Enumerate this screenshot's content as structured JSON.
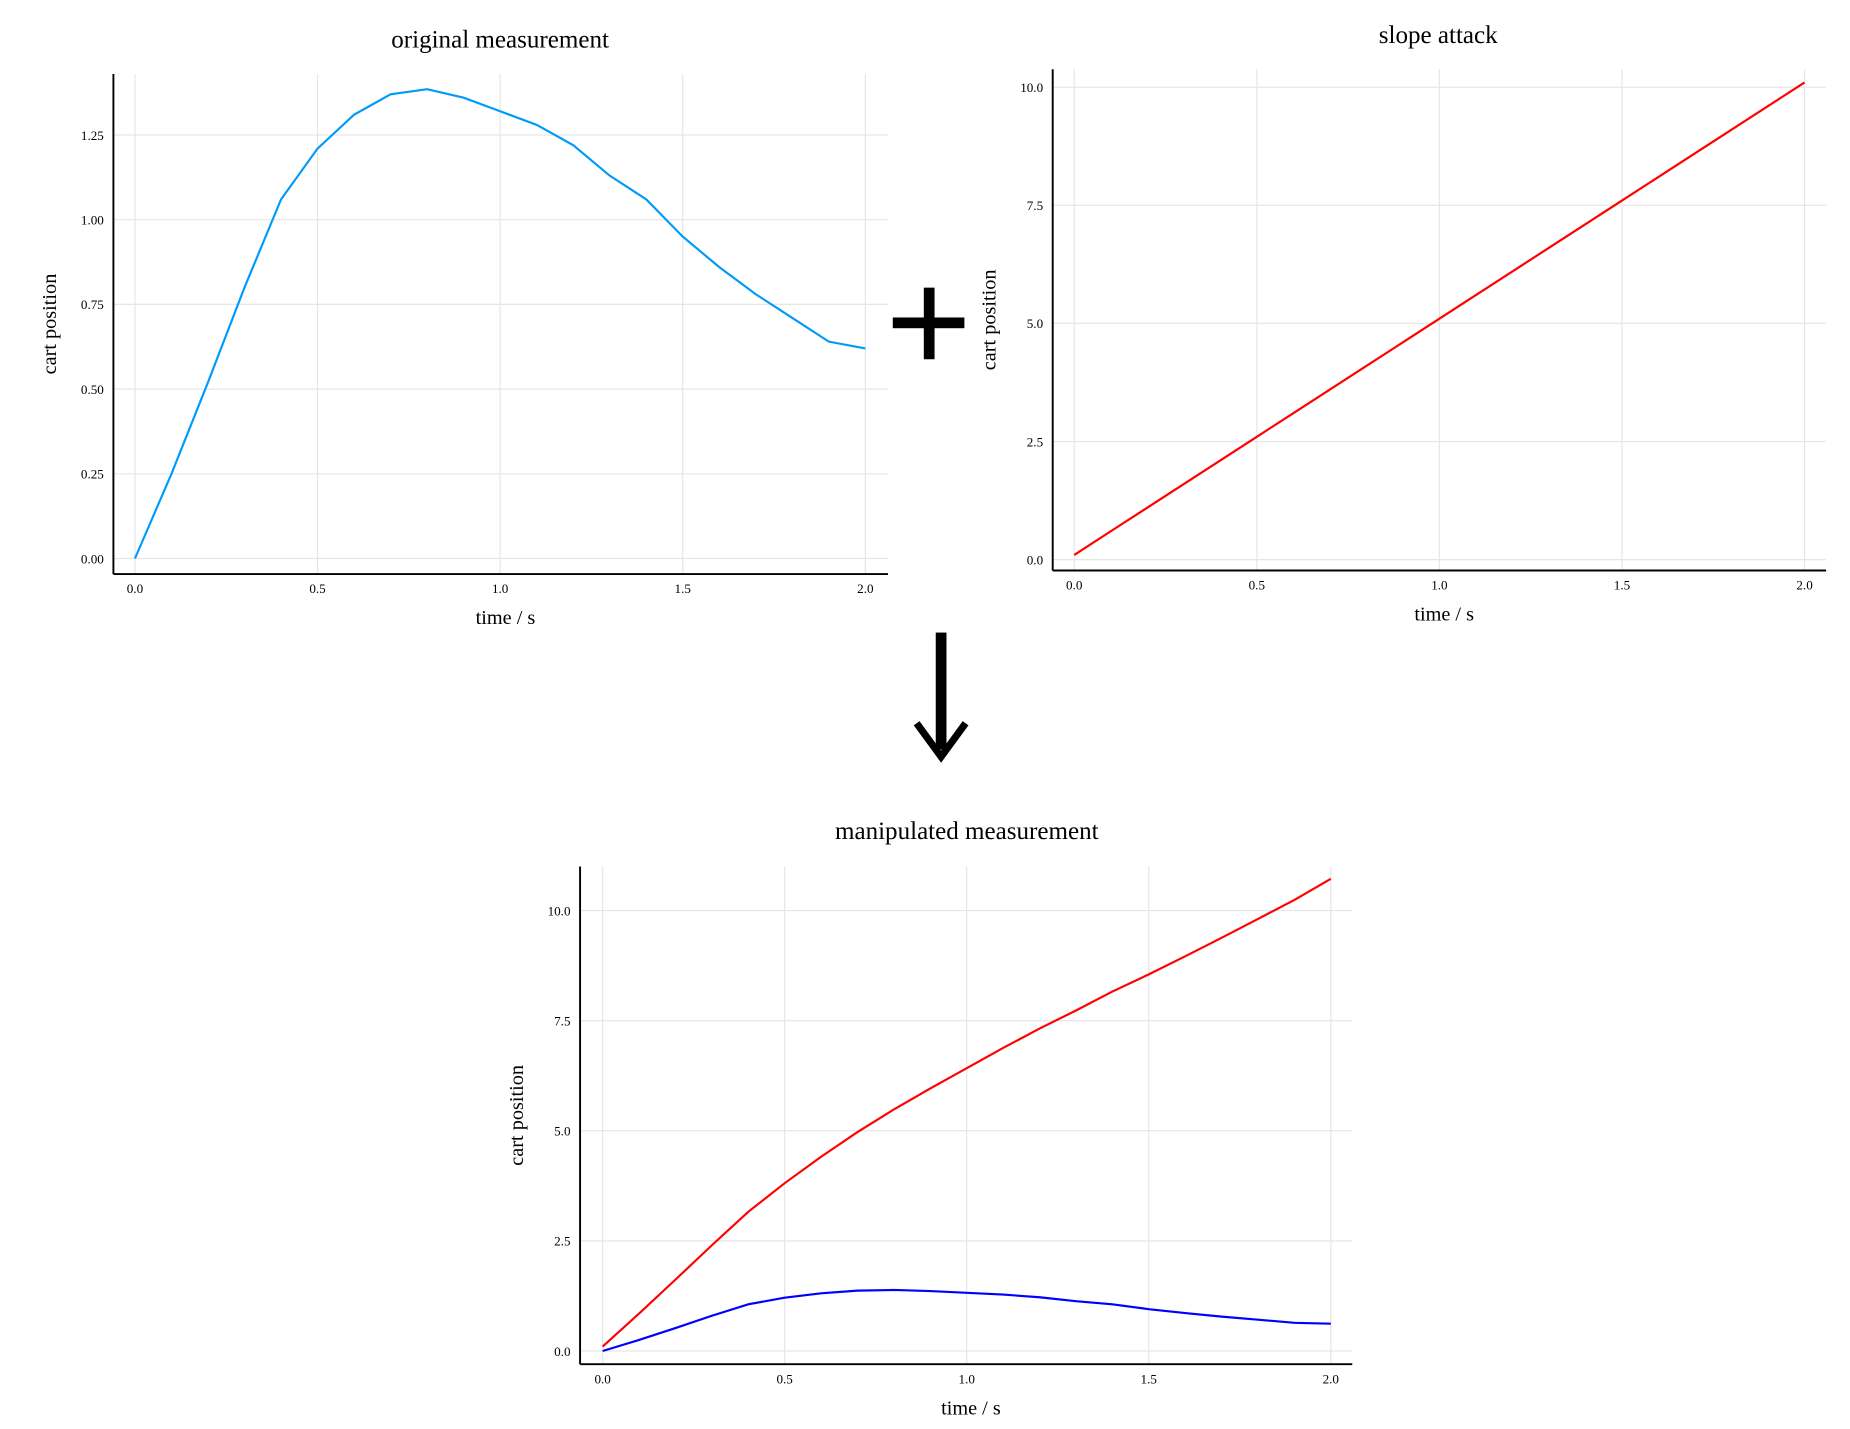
{
  "chart_data": [
    {
      "type": "line",
      "title": "original measurement",
      "xlabel": "time / s",
      "ylabel": "cart position",
      "x": [
        0,
        0.1,
        0.2,
        0.3,
        0.4,
        0.5,
        0.6,
        0.7,
        0.8,
        0.9,
        1.0,
        1.1,
        1.2,
        1.3,
        1.4,
        1.5,
        1.6,
        1.7,
        1.8,
        1.9,
        2.0
      ],
      "series": [
        {
          "color": "#009af9",
          "values": [
            0,
            0.25,
            0.52,
            0.8,
            1.06,
            1.21,
            1.31,
            1.37,
            1.385,
            1.36,
            1.32,
            1.28,
            1.22,
            1.13,
            1.06,
            0.95,
            0.86,
            0.78,
            0.71,
            0.64,
            0.62
          ]
        }
      ],
      "xlim": [
        -0.059,
        2.062
      ],
      "ylim": [
        -0.046,
        1.43
      ],
      "xticks": [
        {
          "value": 0,
          "label": "0.0"
        },
        0.5,
        {
          "value": 1,
          "label": "1.0"
        },
        1.5,
        {
          "value": 2,
          "label": "2.0"
        }
      ],
      "yticks": [
        {
          "value": 0,
          "label": "0.00"
        },
        0.25,
        {
          "value": 0.5,
          "label": "0.50"
        },
        0.75,
        {
          "value": 1,
          "label": "1.00"
        },
        1.25
      ],
      "grid": true
    },
    {
      "type": "line",
      "title": "slope attack",
      "xlabel": "time / s",
      "ylabel": "cart position",
      "x": [
        0,
        0.1,
        0.2,
        0.3,
        0.4,
        0.5,
        0.6,
        0.7,
        0.8,
        0.9,
        1.0,
        1.1,
        1.2,
        1.3,
        1.4,
        1.5,
        1.6,
        1.7,
        1.8,
        1.9,
        2.0
      ],
      "series": [
        {
          "color": "#ff0000",
          "values": [
            0.1,
            0.6,
            1.1,
            1.6,
            2.1,
            2.6,
            3.1,
            3.6,
            4.1,
            4.6,
            5.1,
            5.6,
            6.1,
            6.6,
            7.1,
            7.6,
            8.1,
            8.6,
            9.1,
            9.6,
            10.1
          ]
        }
      ],
      "xlim": [
        -0.059,
        2.059
      ],
      "ylim": [
        -0.23,
        10.38
      ],
      "xticks": [
        {
          "value": 0,
          "label": "0.0"
        },
        0.5,
        {
          "value": 1,
          "label": "1.0"
        },
        1.5,
        {
          "value": 2,
          "label": "2.0"
        }
      ],
      "yticks": [
        {
          "value": 0,
          "label": "0.0"
        },
        2.5,
        {
          "value": 5,
          "label": "5.0"
        },
        7.5,
        {
          "value": 10,
          "label": "10.0"
        }
      ],
      "grid": true
    },
    {
      "type": "line",
      "title": "manipulated measurement",
      "xlabel": "time / s",
      "ylabel": "cart position",
      "x": [
        0,
        0.1,
        0.2,
        0.3,
        0.4,
        0.5,
        0.6,
        0.7,
        0.8,
        0.9,
        1.0,
        1.1,
        1.2,
        1.3,
        1.4,
        1.5,
        1.6,
        1.7,
        1.8,
        1.9,
        2.0
      ],
      "series": [
        {
          "color": "#ff0000",
          "values": [
            0.1,
            0.85,
            1.62,
            2.4,
            3.16,
            3.81,
            4.41,
            4.97,
            5.485,
            5.96,
            6.42,
            6.88,
            7.32,
            7.73,
            8.16,
            8.55,
            8.96,
            9.38,
            9.81,
            10.24,
            10.72
          ]
        },
        {
          "color": "#0000ff",
          "values": [
            0,
            0.25,
            0.52,
            0.8,
            1.06,
            1.21,
            1.31,
            1.37,
            1.385,
            1.36,
            1.32,
            1.28,
            1.22,
            1.13,
            1.06,
            0.95,
            0.86,
            0.78,
            0.71,
            0.64,
            0.62
          ]
        }
      ],
      "xlim": [
        -0.062,
        2.059
      ],
      "ylim": [
        -0.3,
        11.0
      ],
      "xticks": [
        {
          "value": 0,
          "label": "0.0"
        },
        0.5,
        {
          "value": 1,
          "label": "1.0"
        },
        1.5,
        {
          "value": 2,
          "label": "2.0"
        }
      ],
      "yticks": [
        {
          "value": 0,
          "label": "0.0"
        },
        2.5,
        {
          "value": 5,
          "label": "5.0"
        },
        7.5,
        {
          "value": 10,
          "label": "10.0"
        }
      ],
      "grid": true
    }
  ]
}
